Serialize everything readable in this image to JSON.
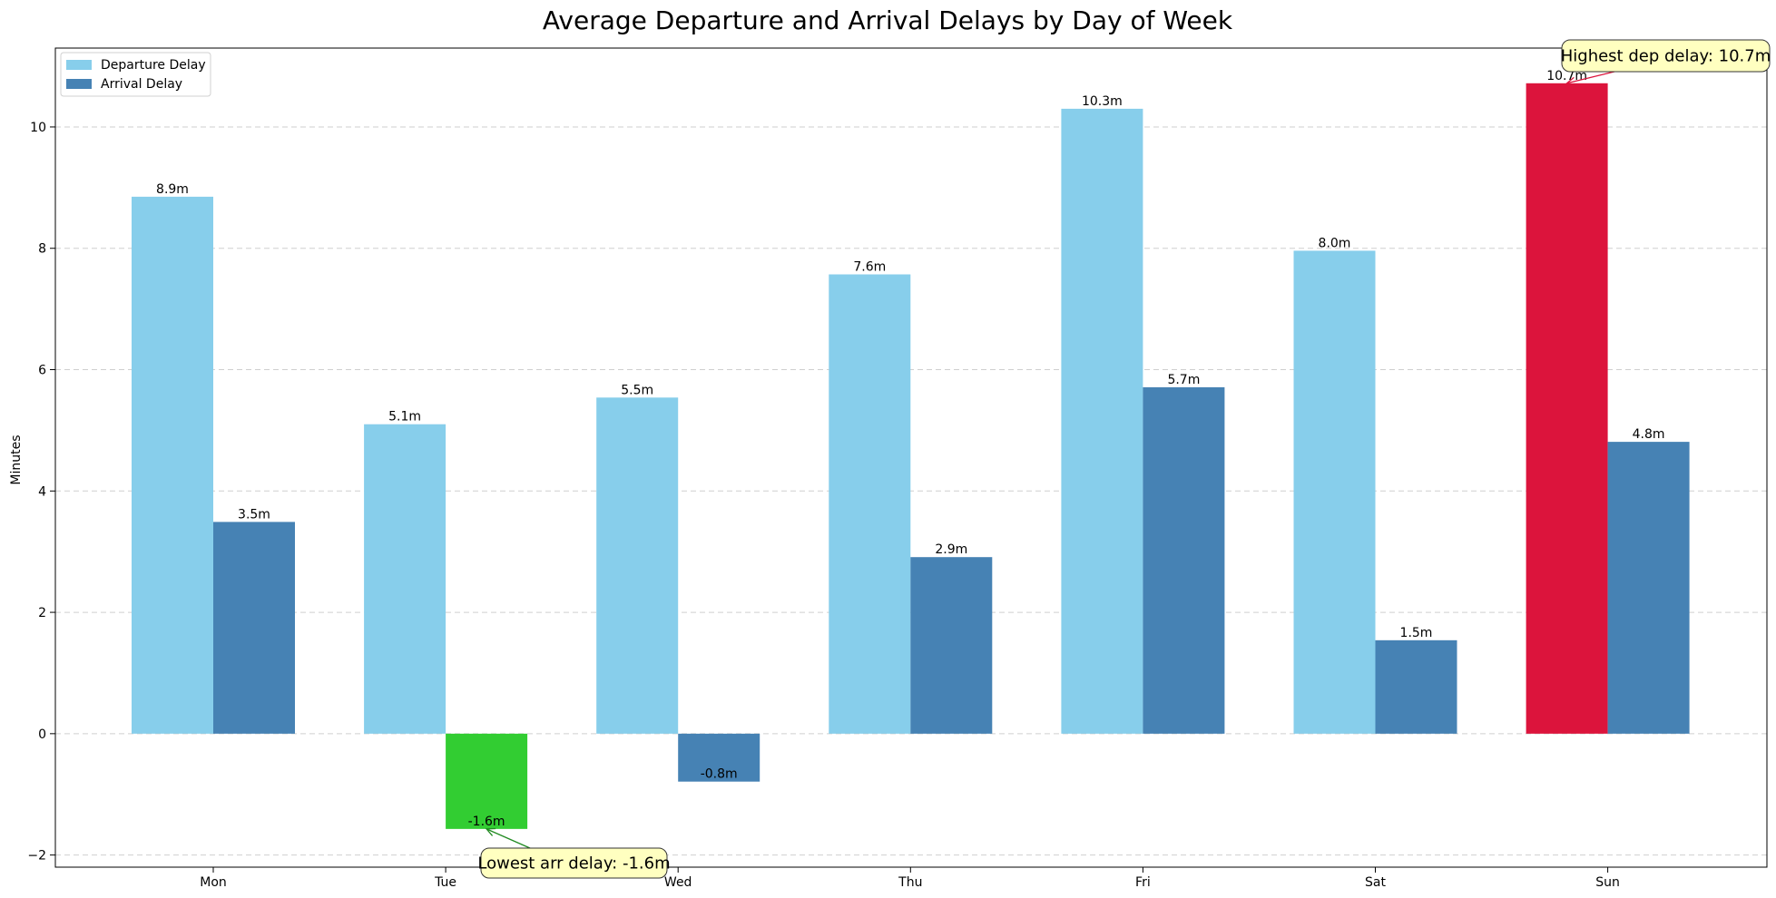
{
  "chart_data": {
    "type": "bar",
    "title": "Average Departure and Arrival Delays by Day of Week",
    "xlabel": "",
    "ylabel": "Minutes",
    "categories": [
      "Mon",
      "Tue",
      "Wed",
      "Thu",
      "Fri",
      "Sat",
      "Sun"
    ],
    "series": [
      {
        "name": "Departure Delay",
        "color": "#87CEEB",
        "values": [
          8.85,
          5.1,
          5.54,
          7.57,
          10.3,
          7.96,
          10.72
        ],
        "labels": [
          "8.9m",
          "5.1m",
          "5.5m",
          "7.6m",
          "10.3m",
          "8.0m",
          "10.7m"
        ]
      },
      {
        "name": "Arrival Delay",
        "color": "#4682B4",
        "values": [
          3.49,
          -1.57,
          -0.79,
          2.91,
          5.71,
          1.54,
          4.81
        ],
        "labels": [
          "3.5m",
          "-1.6m",
          "-0.8m",
          "2.9m",
          "5.7m",
          "1.5m",
          "4.8m"
        ]
      }
    ],
    "highlights": {
      "max_departure": {
        "category": "Sun",
        "color": "#DC143C"
      },
      "min_arrival": {
        "category": "Tue",
        "color": "#32CD32"
      }
    },
    "annotations": [
      {
        "text": "Highest dep delay: 10.7m",
        "target_series": "Departure Delay",
        "target_category": "Sun",
        "arrow_color": "#DC143C"
      },
      {
        "text": "Lowest arr delay: -1.6m",
        "target_series": "Arrival Delay",
        "target_category": "Tue",
        "arrow_color": "#228B22"
      }
    ],
    "ylim": [
      -2.2,
      11.3
    ],
    "yticks": [
      -2,
      0,
      2,
      4,
      6,
      8,
      10
    ],
    "grid": "y-dashed",
    "legend": "upper-left"
  }
}
